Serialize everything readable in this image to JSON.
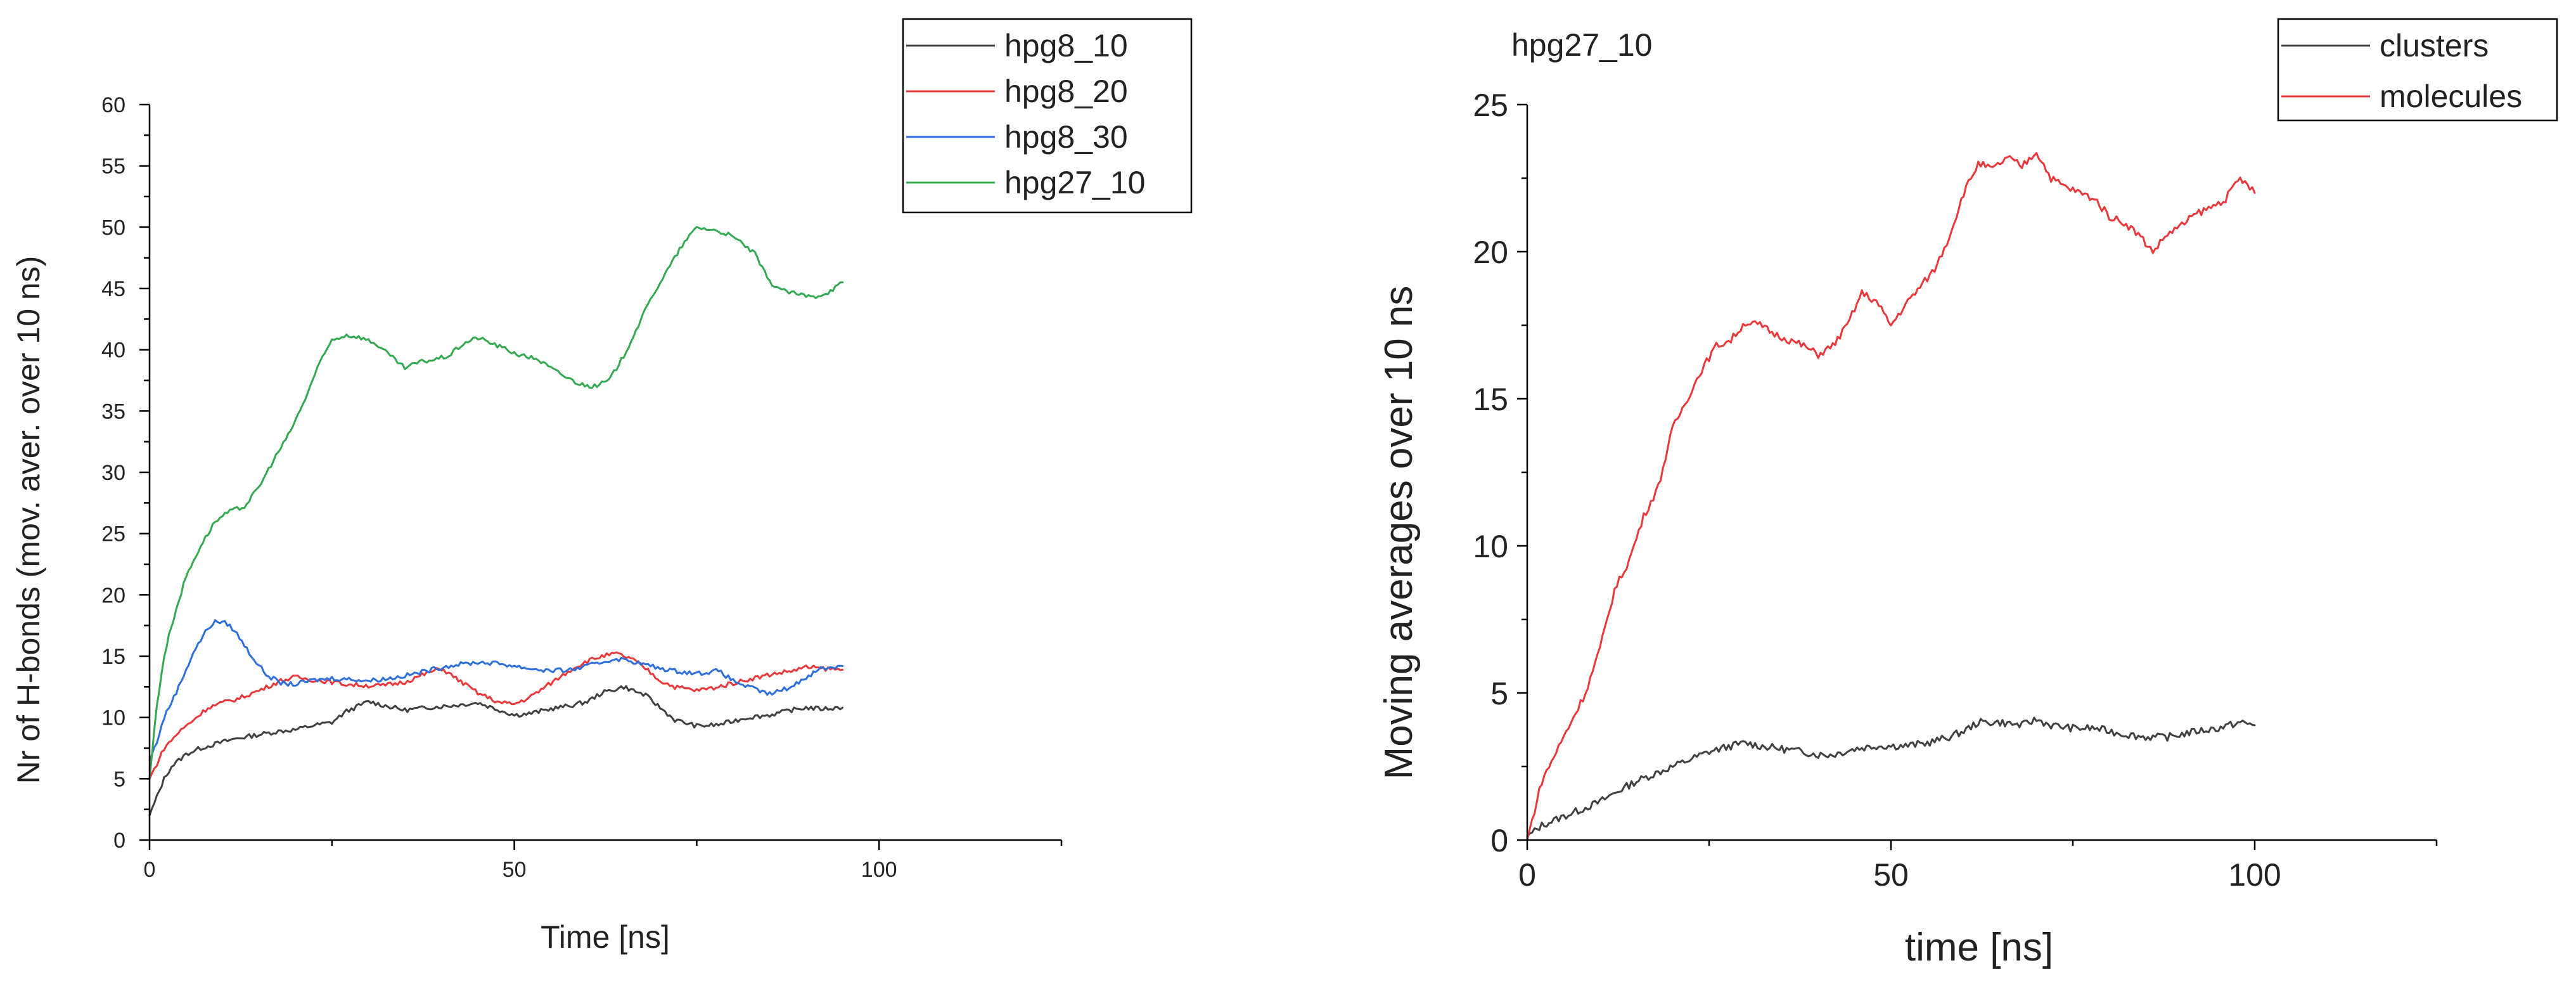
{
  "chart_data": [
    {
      "type": "line",
      "title": "",
      "xlabel": "Time [ns]",
      "ylabel": "Nr of H-bonds (mov. aver. over 10 ns)",
      "xlim": [
        0,
        125
      ],
      "ylim": [
        0,
        60
      ],
      "xticks": [
        0,
        50,
        100
      ],
      "yticks": [
        0,
        5,
        10,
        15,
        20,
        25,
        30,
        35,
        40,
        45,
        50,
        55,
        60
      ],
      "legend_position": "top-right",
      "series": [
        {
          "name": "hpg8_10",
          "color": "#404040",
          "x": [
            0,
            1,
            2,
            3,
            5,
            7,
            10,
            12,
            15,
            18,
            20,
            22,
            25,
            27,
            30,
            32,
            35,
            38,
            40,
            42,
            45,
            48,
            50,
            52,
            55,
            58,
            60,
            62,
            65,
            68,
            70,
            72,
            75,
            78,
            80,
            82,
            85,
            88,
            90,
            92,
            95
          ],
          "y": [
            2,
            3.5,
            5,
            6,
            7,
            7.5,
            8,
            8.3,
            8.6,
            8.9,
            9,
            9.3,
            9.6,
            10.5,
            11.3,
            11,
            10.6,
            10.8,
            10.9,
            11,
            11.2,
            10.6,
            10.2,
            10.3,
            10.7,
            11,
            11.3,
            12,
            12.5,
            11.8,
            10.8,
            9.8,
            9.3,
            9.4,
            9.7,
            10,
            10.2,
            10.6,
            10.8,
            10.7,
            10.8
          ]
        },
        {
          "name": "hpg8_20",
          "color": "#e8383b",
          "x": [
            0,
            1,
            2,
            4,
            6,
            8,
            10,
            12,
            15,
            18,
            20,
            22,
            25,
            27,
            30,
            32,
            35,
            38,
            40,
            42,
            45,
            48,
            50,
            52,
            55,
            58,
            60,
            62,
            64,
            66,
            68,
            70,
            72,
            75,
            78,
            80,
            82,
            85,
            88,
            90,
            92,
            95
          ],
          "y": [
            5,
            6.2,
            7.5,
            8.8,
            9.8,
            10.8,
            11.2,
            11.5,
            12.2,
            13,
            13.3,
            13.1,
            12.9,
            12.7,
            12.6,
            12.6,
            12.9,
            13.6,
            14,
            13.2,
            12,
            11.2,
            11.1,
            11.6,
            12.8,
            14,
            14.6,
            15,
            15.2,
            14.8,
            14,
            13,
            12.5,
            12.2,
            12.5,
            12.8,
            13.1,
            13.5,
            13.8,
            14.1,
            14,
            13.9
          ]
        },
        {
          "name": "hpg8_30",
          "color": "#2e6fdc",
          "x": [
            0,
            1,
            2,
            4,
            6,
            8,
            9,
            10,
            11,
            12,
            14,
            16,
            18,
            20,
            22,
            25,
            28,
            30,
            33,
            35,
            38,
            40,
            42,
            45,
            48,
            50,
            52,
            55,
            58,
            60,
            62,
            64,
            66,
            68,
            70,
            72,
            75,
            78,
            80,
            82,
            85,
            88,
            90,
            92,
            95
          ],
          "y": [
            6.5,
            8,
            10,
            12.5,
            15.3,
            17.3,
            17.8,
            17.8,
            17.5,
            16.8,
            15,
            13.5,
            12.8,
            12.7,
            13,
            13.2,
            13.1,
            13,
            13.2,
            13.4,
            13.8,
            14.1,
            14.3,
            14.5,
            14.4,
            14.2,
            14,
            13.8,
            13.9,
            14.2,
            14.5,
            14.8,
            14.6,
            14.3,
            14,
            13.8,
            13.6,
            13.8,
            13,
            12.5,
            11.9,
            12.5,
            13.3,
            14,
            14.2
          ]
        },
        {
          "name": "hpg27_10",
          "color": "#35a852",
          "x": [
            0,
            1,
            2,
            3,
            4,
            5,
            7,
            9,
            11,
            13,
            15,
            17,
            19,
            21,
            23,
            25,
            27,
            29,
            31,
            33,
            35,
            37,
            39,
            41,
            43,
            45,
            47,
            49,
            51,
            53,
            55,
            57,
            59,
            61,
            63,
            65,
            67,
            69,
            71,
            73,
            75,
            77,
            79,
            81,
            83,
            85,
            87,
            89,
            91,
            93,
            95
          ],
          "y": [
            5,
            11,
            15,
            17.5,
            19.5,
            21.5,
            24,
            26,
            26.8,
            27.2,
            28.8,
            31,
            33,
            35.5,
            38.5,
            40.8,
            41.2,
            41,
            40.5,
            39.5,
            38.5,
            39,
            39.2,
            39.5,
            40.5,
            41,
            40.5,
            40,
            39.5,
            39.3,
            38.5,
            37.8,
            37.2,
            37,
            37.5,
            39.5,
            42,
            44.5,
            46.5,
            48.5,
            50,
            49.8,
            49.5,
            48.8,
            47.8,
            45.5,
            44.8,
            44.5,
            44.3,
            44.7,
            45.5
          ]
        }
      ]
    },
    {
      "type": "line",
      "title": "hpg27_10",
      "xlabel": "time [ns]",
      "ylabel": "Moving averages over 10 ns",
      "xlim": [
        0,
        125
      ],
      "ylim": [
        0,
        25
      ],
      "xticks": [
        0,
        50,
        100
      ],
      "yticks": [
        0,
        5,
        10,
        15,
        20,
        25
      ],
      "legend_position": "top-right",
      "series": [
        {
          "name": "clusters",
          "color": "#404040",
          "x": [
            0,
            1,
            2,
            4,
            6,
            8,
            10,
            12,
            15,
            18,
            20,
            22,
            25,
            28,
            30,
            32,
            35,
            38,
            40,
            42,
            45,
            48,
            50,
            52,
            55,
            58,
            60,
            62,
            65,
            68,
            70,
            72,
            75,
            78,
            80,
            82,
            85,
            88,
            90,
            92,
            95,
            98,
            100
          ],
          "y": [
            0.1,
            0.3,
            0.5,
            0.7,
            0.9,
            1.1,
            1.3,
            1.6,
            2,
            2.3,
            2.5,
            2.7,
            3,
            3.2,
            3.3,
            3.2,
            3.1,
            3,
            2.9,
            2.9,
            3.1,
            3.2,
            3.2,
            3.2,
            3.3,
            3.5,
            3.7,
            4,
            4,
            3.9,
            4.1,
            3.9,
            3.8,
            3.8,
            3.7,
            3.6,
            3.5,
            3.5,
            3.6,
            3.7,
            3.8,
            4,
            3.9
          ]
        },
        {
          "name": "molecules",
          "color": "#e8383b",
          "x": [
            0,
            1,
            2,
            3,
            4,
            6,
            8,
            10,
            12,
            14,
            16,
            18,
            20,
            22,
            24,
            26,
            28,
            30,
            32,
            34,
            36,
            38,
            40,
            42,
            44,
            46,
            48,
            50,
            52,
            54,
            56,
            58,
            60,
            62,
            64,
            66,
            68,
            70,
            72,
            74,
            76,
            78,
            80,
            82,
            84,
            86,
            88,
            90,
            92,
            94,
            96,
            98,
            100
          ],
          "y": [
            0,
            1,
            2,
            2.5,
            3,
            4,
            5,
            6.5,
            8.5,
            9.5,
            11,
            12,
            14,
            15,
            16,
            16.8,
            17,
            17.6,
            17.5,
            17.2,
            17,
            16.8,
            16.5,
            16.8,
            17.5,
            18.6,
            18.3,
            17.5,
            18.2,
            18.8,
            19.4,
            20.5,
            22,
            23,
            22.8,
            23.2,
            22.9,
            23.4,
            22.5,
            22.2,
            22,
            21.8,
            21.2,
            21,
            20.6,
            20,
            20.6,
            20.9,
            21.3,
            21.5,
            21.8,
            22.5,
            22
          ]
        }
      ]
    }
  ]
}
